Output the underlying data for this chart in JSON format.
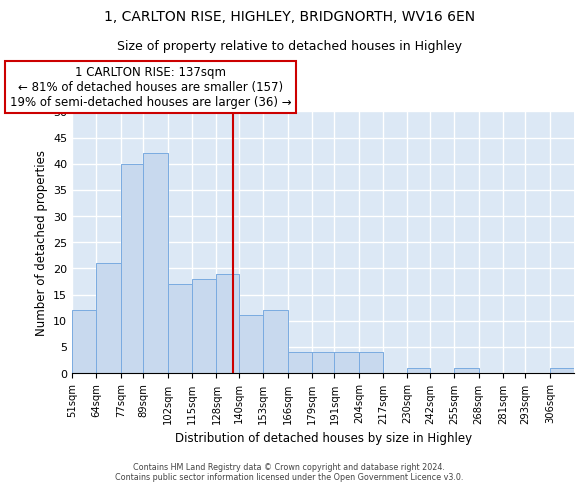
{
  "title": "1, CARLTON RISE, HIGHLEY, BRIDGNORTH, WV16 6EN",
  "subtitle": "Size of property relative to detached houses in Highley",
  "xlabel": "Distribution of detached houses by size in Highley",
  "ylabel": "Number of detached properties",
  "bin_labels": [
    "51sqm",
    "64sqm",
    "77sqm",
    "89sqm",
    "102sqm",
    "115sqm",
    "128sqm",
    "140sqm",
    "153sqm",
    "166sqm",
    "179sqm",
    "191sqm",
    "204sqm",
    "217sqm",
    "230sqm",
    "242sqm",
    "255sqm",
    "268sqm",
    "281sqm",
    "293sqm",
    "306sqm"
  ],
  "bin_edges": [
    51,
    64,
    77,
    89,
    102,
    115,
    128,
    140,
    153,
    166,
    179,
    191,
    204,
    217,
    230,
    242,
    255,
    268,
    281,
    293,
    306
  ],
  "bar_heights": [
    12,
    21,
    40,
    42,
    17,
    18,
    19,
    11,
    12,
    4,
    4,
    4,
    4,
    0,
    1,
    0,
    1,
    0,
    0,
    0,
    1
  ],
  "bar_color": "#c8d9ee",
  "bar_edge_color": "#7aabe0",
  "reference_line_x": 137,
  "reference_line_color": "#cc0000",
  "ylim": [
    0,
    50
  ],
  "yticks": [
    0,
    5,
    10,
    15,
    20,
    25,
    30,
    35,
    40,
    45,
    50
  ],
  "annotation_line1": "1 CARLTON RISE: 137sqm",
  "annotation_line2": "← 81% of detached houses are smaller (157)",
  "annotation_line3": "19% of semi-detached houses are larger (36) →",
  "footer_line1": "Contains HM Land Registry data © Crown copyright and database right 2024.",
  "footer_line2": "Contains public sector information licensed under the Open Government Licence v3.0.",
  "grid_color": "#ffffff",
  "background_color": "#dce8f5"
}
